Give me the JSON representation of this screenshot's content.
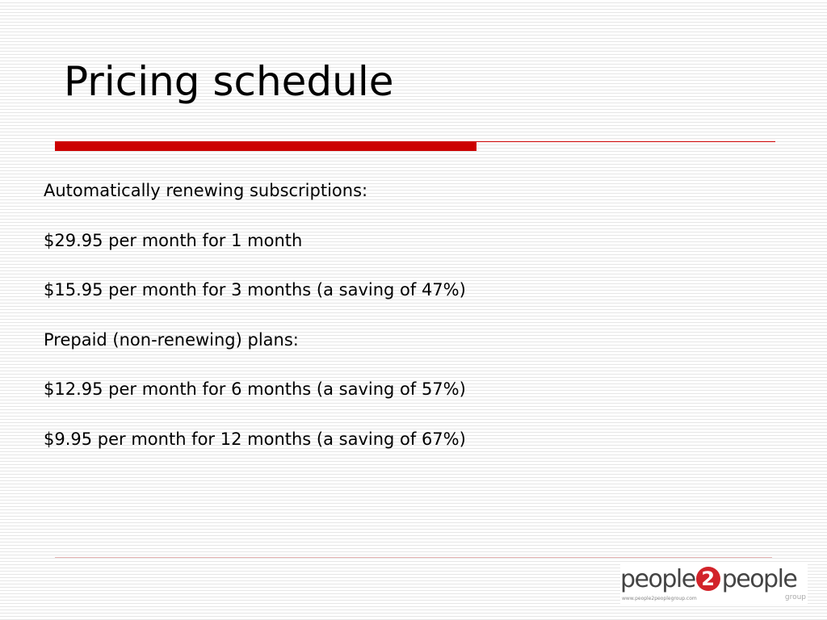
{
  "slide": {
    "title": "Pricing schedule",
    "lines": [
      "Automatically renewing subscriptions:",
      "$29.95 per month for 1 month",
      "$15.95 per month for 3 months (a saving of 47%)",
      "Prepaid (non-renewing) plans:",
      "$12.95 per month for 6 months (a saving of 57%)",
      "$9.95 per month for 12 months (a saving of 67%)"
    ]
  },
  "logo": {
    "brand_left": "people",
    "brand_badge": "2",
    "brand_right": "people",
    "url": "www.people2peoplegroup.com",
    "group": "group"
  },
  "colors": {
    "accent": "#cc0000",
    "badge": "#d2232a",
    "text": "#000000"
  }
}
